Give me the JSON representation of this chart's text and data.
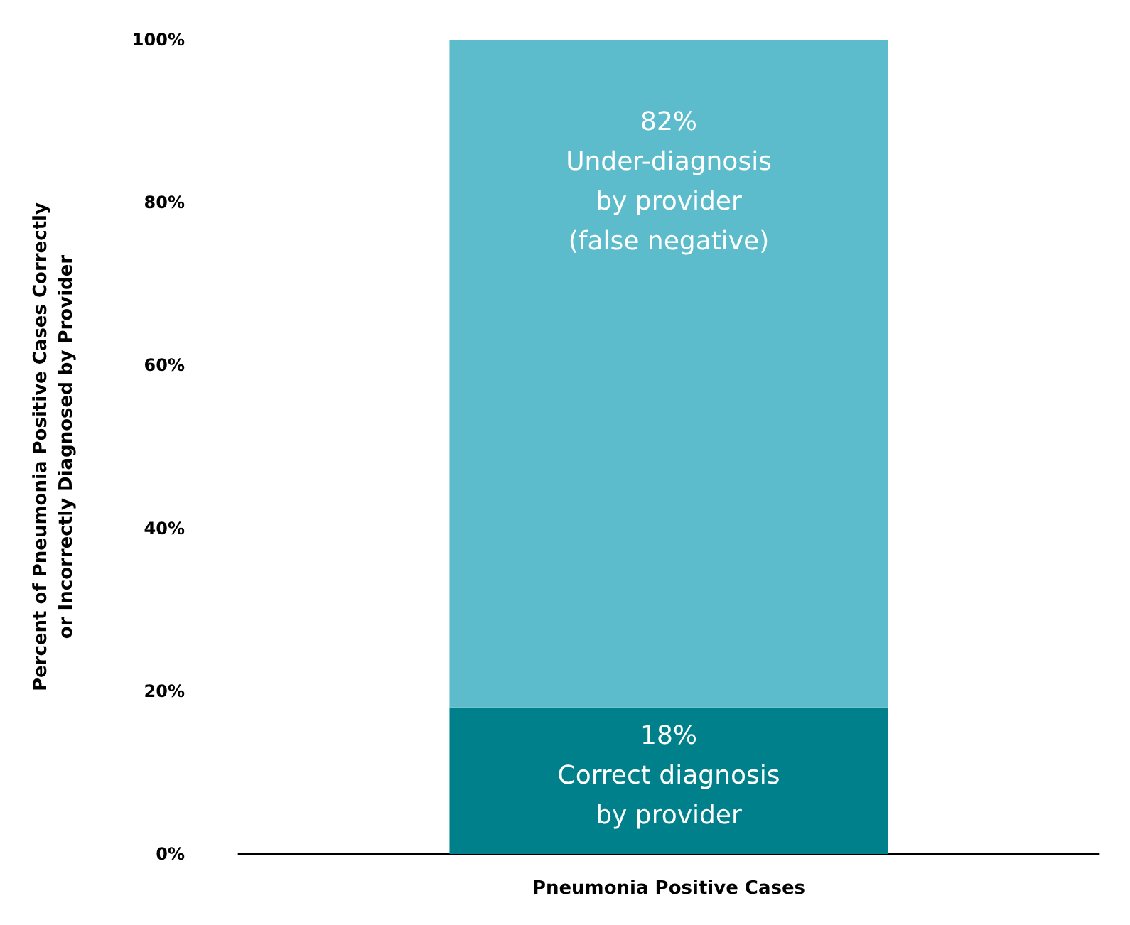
{
  "chart_data": {
    "type": "bar",
    "stacked": true,
    "ylabel": "Percent of Pneumonia Positive Cases Correctly\nor Incorrectly Diagnosed by Provider",
    "categories": [
      "Pneumonia Positive Cases"
    ],
    "series": [
      {
        "name": "Correct diagnosis\nby provider",
        "color": "#00808a",
        "values": [
          18
        ],
        "value_labels": [
          "18%"
        ]
      },
      {
        "name": "Under-diagnosis\nby provider\n(false negative)",
        "color": "#5dbccb",
        "values": [
          82
        ],
        "value_labels": [
          "82%"
        ]
      }
    ],
    "ylim": [
      0,
      100
    ],
    "yticks": [
      {
        "value": 0,
        "label": "0%"
      },
      {
        "value": 20,
        "label": "20%"
      },
      {
        "value": 40,
        "label": "40%"
      },
      {
        "value": 60,
        "label": "60%"
      },
      {
        "value": 80,
        "label": "80%"
      },
      {
        "value": 100,
        "label": "100%"
      }
    ],
    "grid": false,
    "legend": false
  }
}
